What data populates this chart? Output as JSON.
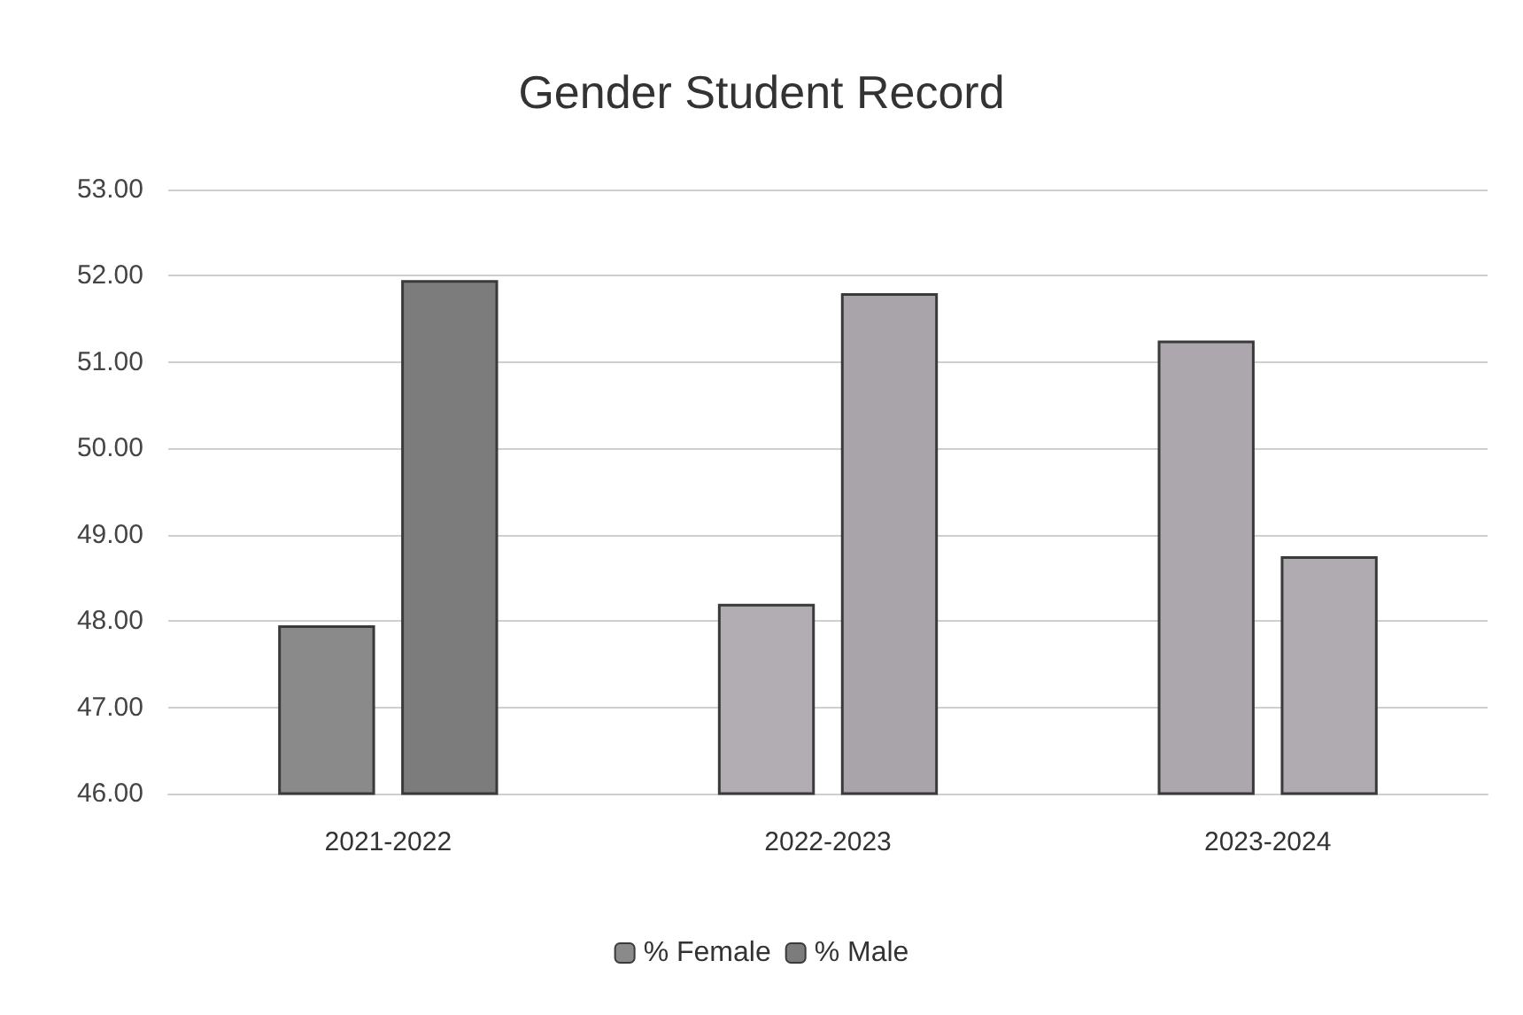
{
  "chart_data": {
    "type": "bar",
    "title": "Gender Student Record",
    "categories": [
      "2021-2022",
      "2022-2023",
      "2023-2024"
    ],
    "series": [
      {
        "name": "% Female",
        "color": "#8a8a8a",
        "colors": [
          "#8a8a8a",
          "#b2adb2",
          "#aca7ac"
        ],
        "values": [
          47.95,
          48.2,
          51.25
        ]
      },
      {
        "name": "% Male",
        "color": "#7c7c7c",
        "colors": [
          "#7c7c7c",
          "#a9a4a9",
          "#b0abb0"
        ],
        "values": [
          51.95,
          51.8,
          48.75
        ]
      }
    ],
    "ylim": [
      46,
      53
    ],
    "yticks": [
      {
        "value": 46,
        "label": "46.00"
      },
      {
        "value": 47,
        "label": "47.00"
      },
      {
        "value": 48,
        "label": "48.00"
      },
      {
        "value": 49,
        "label": "49.00"
      },
      {
        "value": 50,
        "label": "50.00"
      },
      {
        "value": 51,
        "label": "51.00"
      },
      {
        "value": 52,
        "label": "52.00"
      },
      {
        "value": 53,
        "label": "53.00"
      }
    ],
    "grid": "y",
    "legend": "bottom"
  }
}
